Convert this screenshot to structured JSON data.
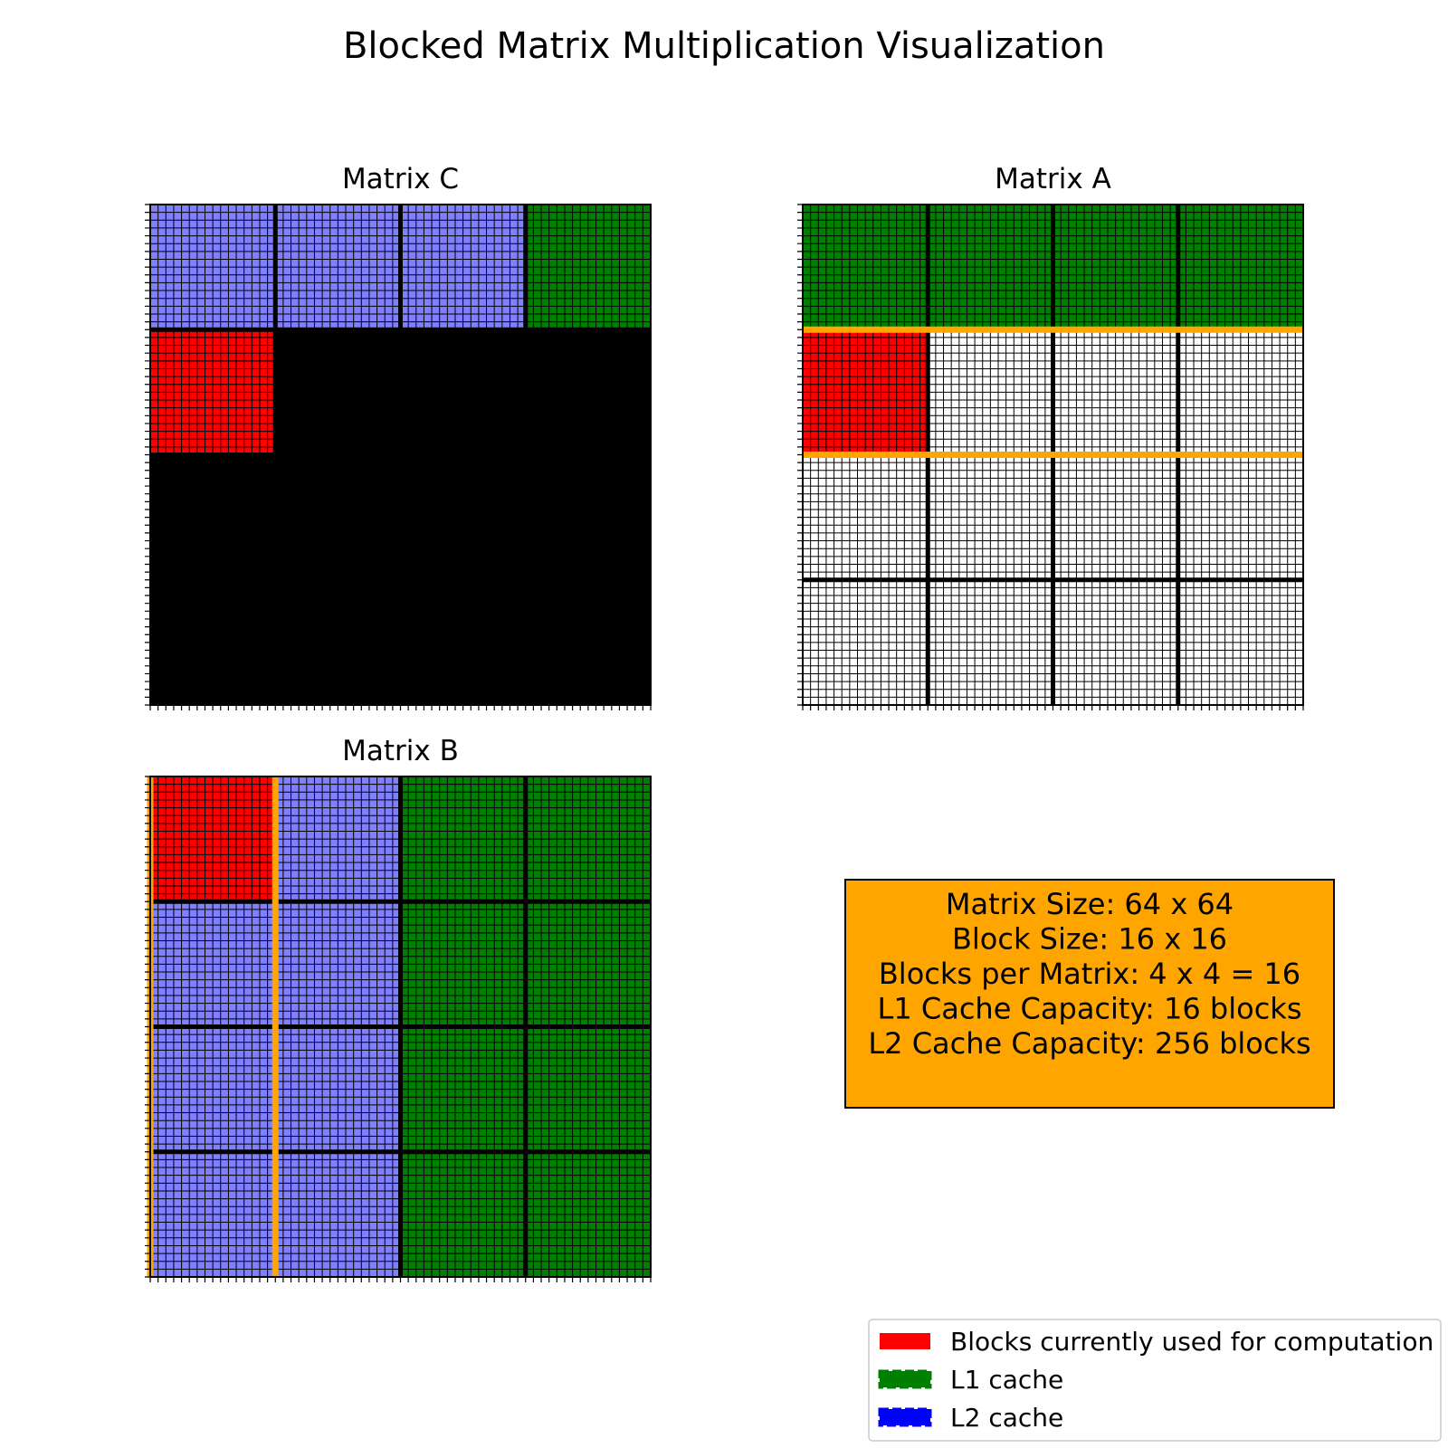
{
  "figure": {
    "title": "Blocked Matrix Multiplication Visualization"
  },
  "matrices": [
    {
      "title": "Matrix C",
      "block_states": [
        [
          "l2",
          "l2",
          "l2",
          "l1"
        ],
        [
          "current",
          "uncomputed",
          "uncomputed",
          "uncomputed"
        ],
        [
          "uncomputed",
          "uncomputed",
          "uncomputed",
          "uncomputed"
        ],
        [
          "uncomputed",
          "uncomputed",
          "uncomputed",
          "uncomputed"
        ]
      ],
      "highlight": null
    },
    {
      "title": "Matrix A",
      "block_states": [
        [
          "l1",
          "l1",
          "l1",
          "l1"
        ],
        [
          "current",
          "empty",
          "empty",
          "empty"
        ],
        [
          "empty",
          "empty",
          "empty",
          "empty"
        ],
        [
          "empty",
          "empty",
          "empty",
          "empty"
        ]
      ],
      "highlight": {
        "type": "row",
        "index": 1
      }
    },
    {
      "title": "Matrix B",
      "block_states": [
        [
          "current",
          "l2",
          "l1",
          "l1"
        ],
        [
          "l2",
          "l2",
          "l1",
          "l1"
        ],
        [
          "l2",
          "l2",
          "l1",
          "l1"
        ],
        [
          "l2",
          "l2",
          "l1",
          "l1"
        ]
      ],
      "highlight": {
        "type": "col",
        "index": 0
      }
    }
  ],
  "grid": {
    "size": 64,
    "blocks": 4,
    "block_size": 16
  },
  "info_box": {
    "lines": [
      "Matrix Size: 64 x 64",
      "Block Size: 16 x 16",
      "Blocks per Matrix: 4 x 4 = 16",
      "L1 Cache Capacity: 16 blocks",
      "L2 Cache Capacity: 256 blocks"
    ]
  },
  "legend": {
    "items": [
      {
        "label": "Blocks currently used for computation",
        "state": "current"
      },
      {
        "label": "L1 cache",
        "state": "l1"
      },
      {
        "label": "L2 cache",
        "state": "l2"
      }
    ]
  },
  "colors": {
    "current": "#ff0000",
    "l1": "#008000",
    "l2": "#8080ff",
    "uncomputed": "#000000",
    "empty": "#ffffff",
    "highlight": "#ffa500",
    "info_box_bg": "#ffa500",
    "legend_l1_patch": "#008000",
    "legend_l2_patch": "#0000ff"
  }
}
